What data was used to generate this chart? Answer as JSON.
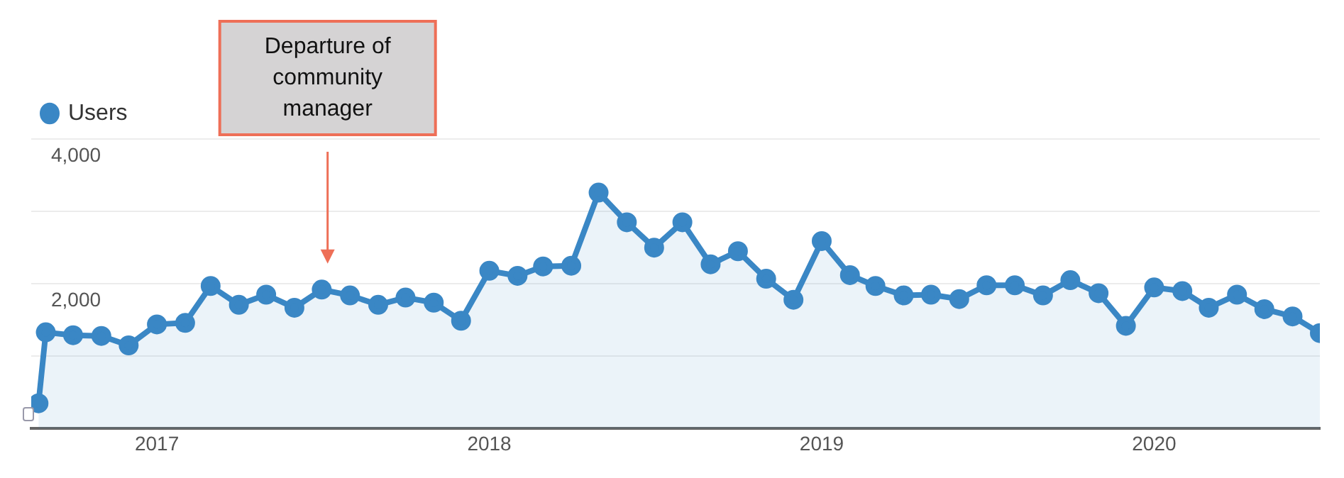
{
  "chart_data": {
    "type": "area",
    "x": [
      "2016-08-24",
      "2016-09",
      "2016-10",
      "2016-11",
      "2016-12",
      "2017-01",
      "2017-02",
      "2017-03",
      "2017-04",
      "2017-05",
      "2017-06",
      "2017-07",
      "2017-08",
      "2017-09",
      "2017-10",
      "2017-11",
      "2017-12",
      "2018-01",
      "2018-02",
      "2018-03",
      "2018-04",
      "2018-05",
      "2018-06",
      "2018-07",
      "2018-08",
      "2018-09",
      "2018-10",
      "2018-11",
      "2018-12",
      "2019-01",
      "2019-02",
      "2019-03",
      "2019-04",
      "2019-05",
      "2019-06",
      "2019-07",
      "2019-08",
      "2019-09",
      "2019-10",
      "2019-11",
      "2019-12",
      "2020-01",
      "2020-02",
      "2020-03",
      "2020-04",
      "2020-05",
      "2020-06",
      "2020-07"
    ],
    "series": [
      {
        "name": "Users",
        "color": "#3a87c5",
        "values": [
          350,
          1330,
          1290,
          1280,
          1150,
          1440,
          1460,
          1970,
          1710,
          1850,
          1670,
          1920,
          1840,
          1710,
          1810,
          1740,
          1490,
          2180,
          2110,
          2240,
          2250,
          3260,
          2850,
          2500,
          2850,
          2270,
          2450,
          2070,
          1780,
          2590,
          2120,
          1970,
          1840,
          1850,
          1790,
          1980,
          1980,
          1840,
          2050,
          1870,
          1420,
          1950,
          1900,
          1670,
          1850,
          1650,
          1550,
          1320
        ]
      }
    ],
    "xlim": [
      "2016-08-16",
      "2020-07"
    ],
    "xticks": [
      "2017",
      "2018",
      "2019",
      "2020"
    ],
    "ylim": [
      0,
      4000
    ],
    "yticks": [
      {
        "value": 1000,
        "label": null
      },
      {
        "value": 2000,
        "label": "2,000"
      },
      {
        "value": 3000,
        "label": null
      },
      {
        "value": 4000,
        "label": "4,000"
      }
    ],
    "grid": "y",
    "legend": "top left",
    "marker": "circle",
    "annotations": [
      "Departure of community manager"
    ]
  }
}
